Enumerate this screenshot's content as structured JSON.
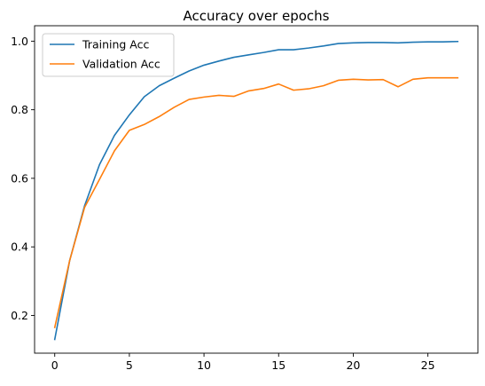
{
  "chart_data": {
    "type": "line",
    "title": "Accuracy over epochs",
    "xlabel": "",
    "ylabel": "",
    "xlim": [
      -1.35,
      28.35
    ],
    "ylim": [
      0.09,
      1.045
    ],
    "xticks": [
      0,
      5,
      10,
      15,
      20,
      25
    ],
    "yticks": [
      0.2,
      0.4,
      0.6,
      0.8,
      1.0
    ],
    "ytick_labels": [
      "0.2",
      "0.4",
      "0.6",
      "0.8",
      "1.0"
    ],
    "grid": false,
    "legend_position": "top-left",
    "x": [
      0,
      1,
      2,
      3,
      4,
      5,
      6,
      7,
      8,
      9,
      10,
      11,
      12,
      13,
      14,
      15,
      16,
      17,
      18,
      19,
      20,
      21,
      22,
      23,
      24,
      25,
      26,
      27
    ],
    "series": [
      {
        "name": "Training Acc",
        "color": "#1f77b4",
        "values": [
          0.13,
          0.36,
          0.52,
          0.64,
          0.725,
          0.785,
          0.838,
          0.87,
          0.892,
          0.913,
          0.93,
          0.942,
          0.953,
          0.96,
          0.967,
          0.975,
          0.975,
          0.98,
          0.986,
          0.993,
          0.995,
          0.996,
          0.996,
          0.995,
          0.997,
          0.998,
          0.998,
          0.999
        ]
      },
      {
        "name": "Validation Acc",
        "color": "#ff7f0e",
        "values": [
          0.165,
          0.36,
          0.515,
          0.597,
          0.68,
          0.74,
          0.757,
          0.78,
          0.807,
          0.83,
          0.837,
          0.842,
          0.839,
          0.855,
          0.862,
          0.875,
          0.857,
          0.861,
          0.87,
          0.886,
          0.889,
          0.887,
          0.888,
          0.867,
          0.889,
          0.893,
          0.893,
          0.893
        ]
      }
    ]
  }
}
